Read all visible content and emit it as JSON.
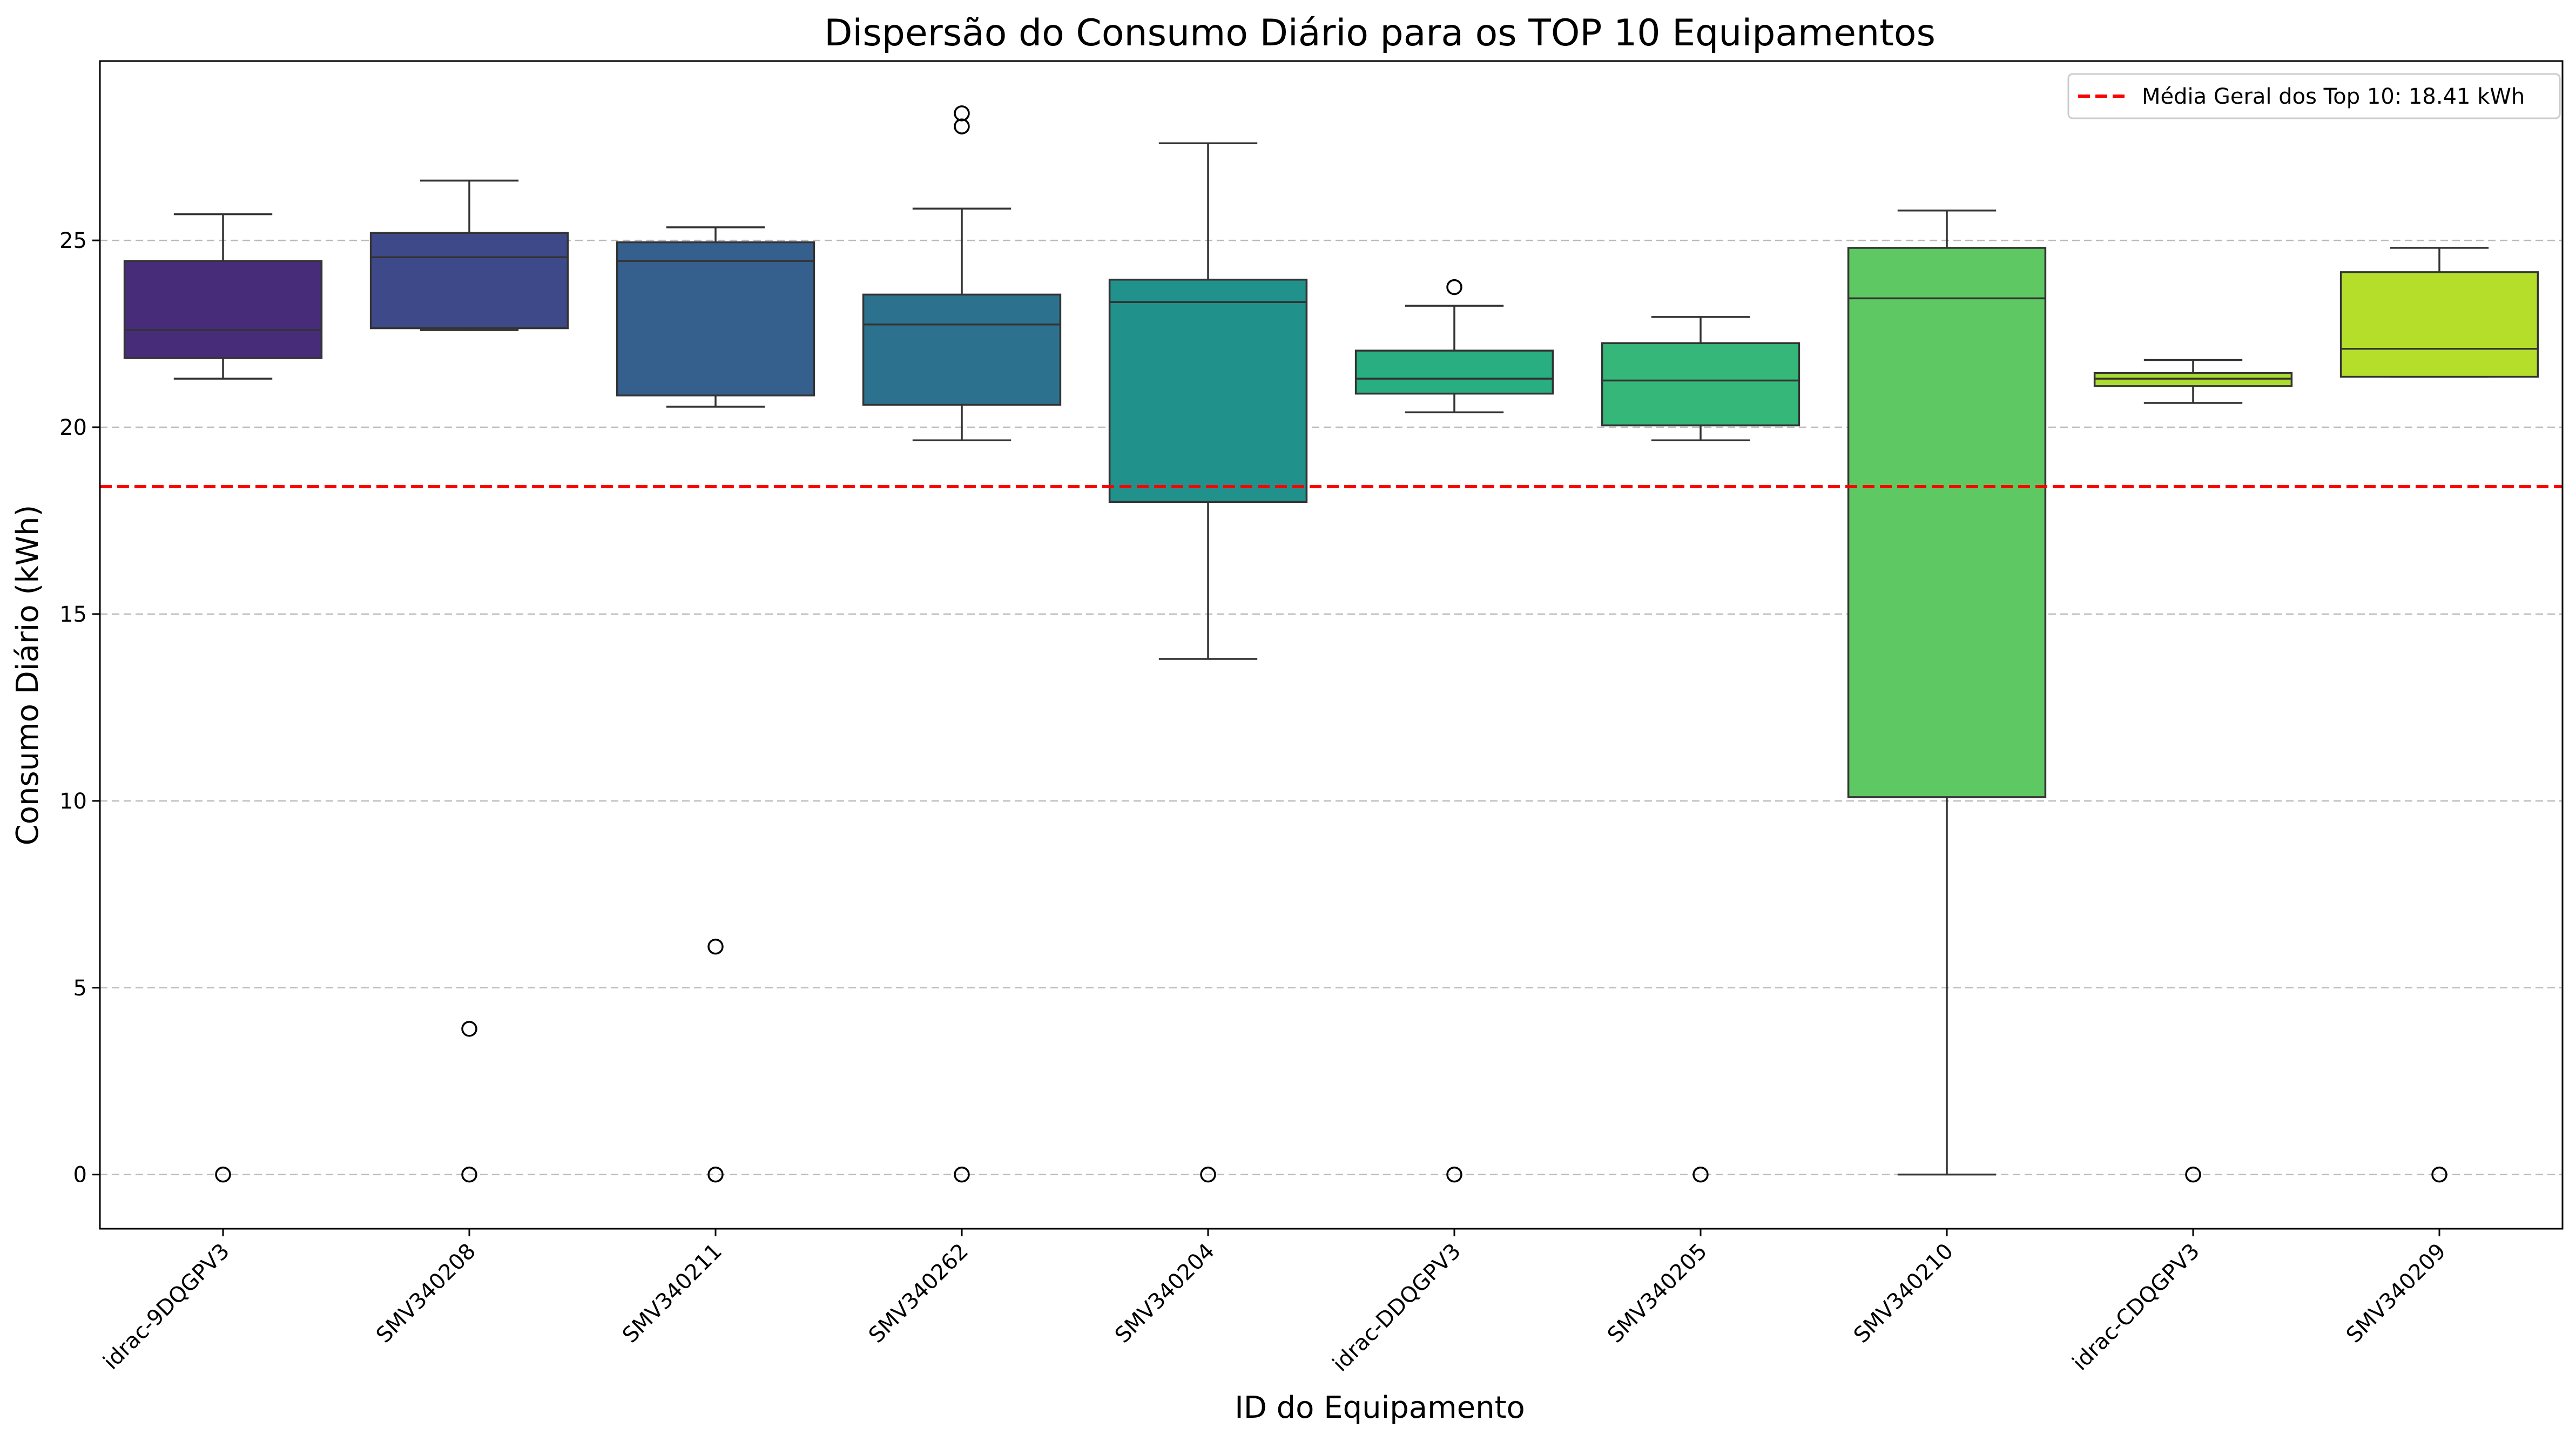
{
  "chart_data": {
    "type": "box",
    "title": "Dispersão do Consumo Diário para os TOP 10 Equipamentos",
    "xlabel": "ID do Equipamento",
    "ylabel": "Consumo Diário (kWh)",
    "ylim": [
      -1.45,
      29.8
    ],
    "yticks": [
      0,
      5,
      10,
      15,
      20,
      25
    ],
    "grid": "horizontal dashed",
    "legend_position": "top-right",
    "reference_line": {
      "label": "Média Geral dos Top 10: 18.41 kWh",
      "value": 18.41,
      "color": "#ff0000"
    },
    "categories": [
      "idrac-9DQGPV3",
      "SMV340208",
      "SMV340211",
      "SMV340262",
      "SMV340204",
      "idrac-DDQGPV3",
      "SMV340205",
      "SMV340210",
      "idrac-CDQGPV3",
      "SMV340209"
    ],
    "boxes": [
      {
        "category": "idrac-9DQGPV3",
        "q1": 21.85,
        "median": 22.6,
        "q3": 24.45,
        "whisker_low": 21.3,
        "whisker_high": 25.7,
        "outliers": [
          0
        ],
        "color": "#472c7a"
      },
      {
        "category": "SMV340208",
        "q1": 22.65,
        "median": 24.55,
        "q3": 25.2,
        "whisker_low": 22.6,
        "whisker_high": 26.6,
        "outliers": [
          3.9,
          0
        ],
        "color": "#3e4989"
      },
      {
        "category": "SMV340211",
        "q1": 20.85,
        "median": 24.45,
        "q3": 24.95,
        "whisker_low": 20.55,
        "whisker_high": 25.35,
        "outliers": [
          6.1,
          0
        ],
        "color": "#355f8d"
      },
      {
        "category": "SMV340262",
        "q1": 20.6,
        "median": 22.75,
        "q3": 23.55,
        "whisker_low": 19.65,
        "whisker_high": 25.85,
        "outliers": [
          28.4,
          28.05,
          0
        ],
        "color": "#2c728e"
      },
      {
        "category": "SMV340204",
        "q1": 18.0,
        "median": 23.35,
        "q3": 23.95,
        "whisker_low": 13.8,
        "whisker_high": 27.6,
        "outliers": [
          0
        ],
        "color": "#21918c"
      },
      {
        "category": "idrac-DDQGPV3",
        "q1": 20.9,
        "median": 21.3,
        "q3": 22.05,
        "whisker_low": 20.4,
        "whisker_high": 23.25,
        "outliers": [
          23.75,
          0
        ],
        "color": "#28ae80"
      },
      {
        "category": "SMV340205",
        "q1": 20.05,
        "median": 21.25,
        "q3": 22.25,
        "whisker_low": 19.65,
        "whisker_high": 22.95,
        "outliers": [
          0
        ],
        "color": "#35b779"
      },
      {
        "category": "SMV340210",
        "q1": 10.1,
        "median": 23.45,
        "q3": 24.8,
        "whisker_low": 0,
        "whisker_high": 25.8,
        "outliers": [],
        "color": "#5ec962"
      },
      {
        "category": "idrac-CDQGPV3",
        "q1": 21.1,
        "median": 21.3,
        "q3": 21.45,
        "whisker_low": 20.65,
        "whisker_high": 21.8,
        "outliers": [
          0
        ],
        "color": "#addc30"
      },
      {
        "category": "SMV340209",
        "q1": 21.35,
        "median": 22.1,
        "q3": 24.15,
        "whisker_low": 21.35,
        "whisker_high": 24.8,
        "outliers": [
          0
        ],
        "color": "#b5de2b"
      }
    ]
  }
}
